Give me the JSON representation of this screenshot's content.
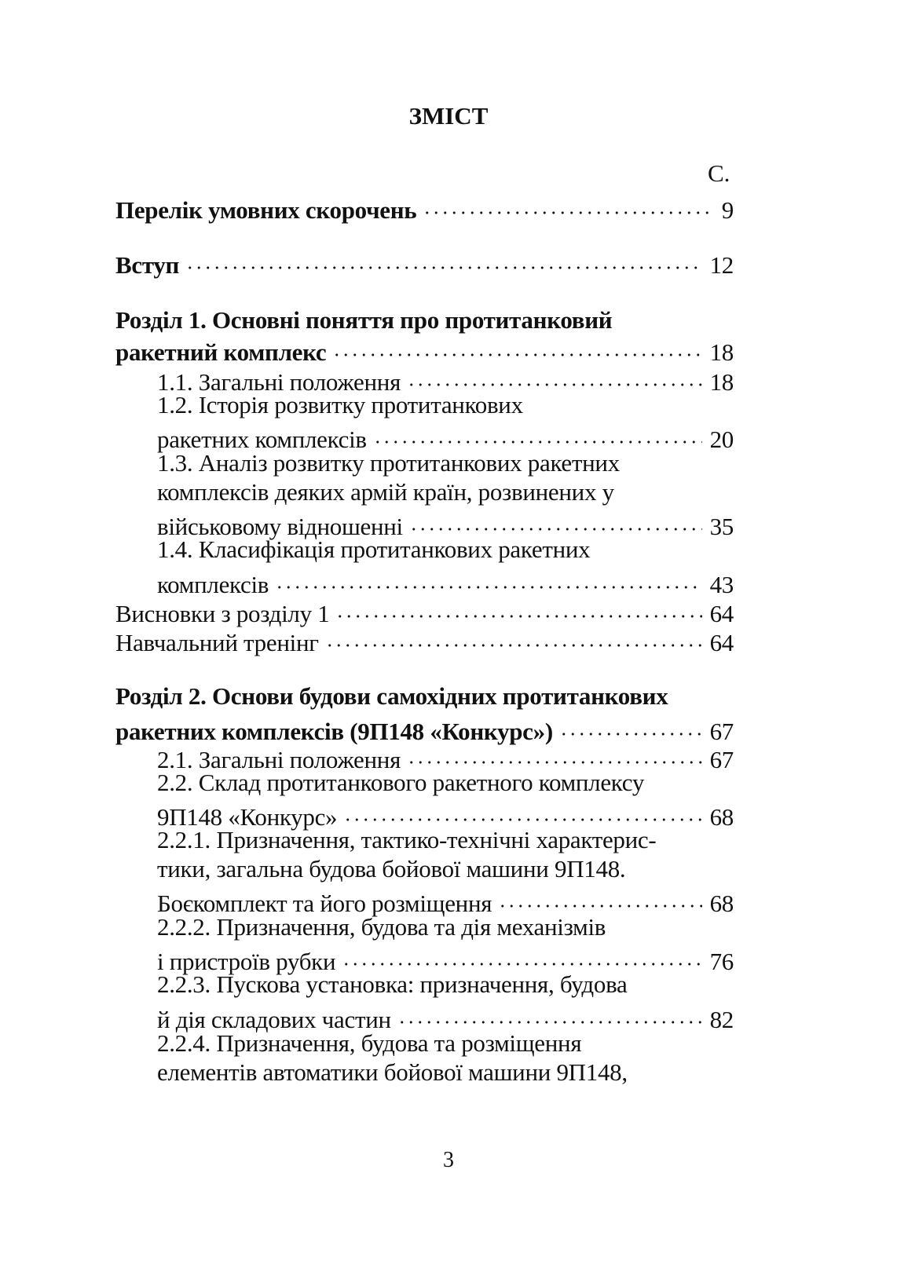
{
  "title": "ЗМІСТ",
  "page_column_label": "С.",
  "folio": "3",
  "entries": [
    {
      "level": "bold",
      "lines": [
        "Перелік умовних скорочень"
      ],
      "page": "9"
    },
    {
      "level": "bold",
      "lines": [
        "Вступ"
      ],
      "page": "12"
    },
    {
      "level": "bold",
      "lines": [
        "Розділ 1. Основні поняття про протитанковий",
        "ракетний комплекс"
      ],
      "page": "18"
    },
    {
      "level": "sub",
      "lines": [
        "1.1. Загальні положення"
      ],
      "page": "18"
    },
    {
      "level": "sub",
      "lines": [
        "1.2. Історія розвитку протитанкових",
        "ракетних комплексів"
      ],
      "page": "20"
    },
    {
      "level": "sub",
      "lines": [
        "1.3. Аналіз розвитку протитанкових ракетних",
        "комплексів деяких армій країн, розвинених у",
        "військовому відношенні"
      ],
      "page": "35"
    },
    {
      "level": "sub",
      "lines": [
        "1.4. Класифікація протитанкових ракетних",
        "комплексів"
      ],
      "page": "43"
    },
    {
      "level": "plain",
      "lines": [
        "Висновки з розділу 1"
      ],
      "page": "64"
    },
    {
      "level": "plain",
      "lines": [
        "Навчальний тренінг"
      ],
      "page": "64"
    },
    {
      "level": "bold",
      "lines": [
        "Розділ 2. Основи будови самохідних протитанкових",
        "ракетних комплексів (9П148 «Конкурс»)"
      ],
      "page": "67"
    },
    {
      "level": "sub",
      "lines": [
        "2.1. Загальні положення"
      ],
      "page": "67"
    },
    {
      "level": "sub",
      "lines": [
        "2.2. Склад протитанкового ракетного комплексу",
        "9П148 «Конкурс»"
      ],
      "page": "68"
    },
    {
      "level": "sub",
      "lines": [
        "2.2.1. Призначення, тактико-технічні характерис-",
        "тики, загальна будова бойової машини 9П148.",
        "Боєкомплект та його розміщення"
      ],
      "page": "68"
    },
    {
      "level": "sub",
      "lines": [
        "2.2.2. Призначення, будова та дія механізмів",
        "і пристроїв рубки"
      ],
      "page": "76"
    },
    {
      "level": "sub",
      "lines": [
        "2.2.3. Пускова установка: призначення, будова",
        "й дія складових частин"
      ],
      "page": "82"
    },
    {
      "level": "sub",
      "lines": [
        "2.2.4. Призначення, будова та розміщення",
        "елементів автоматики бойової машини 9П148,"
      ],
      "page": null
    }
  ]
}
